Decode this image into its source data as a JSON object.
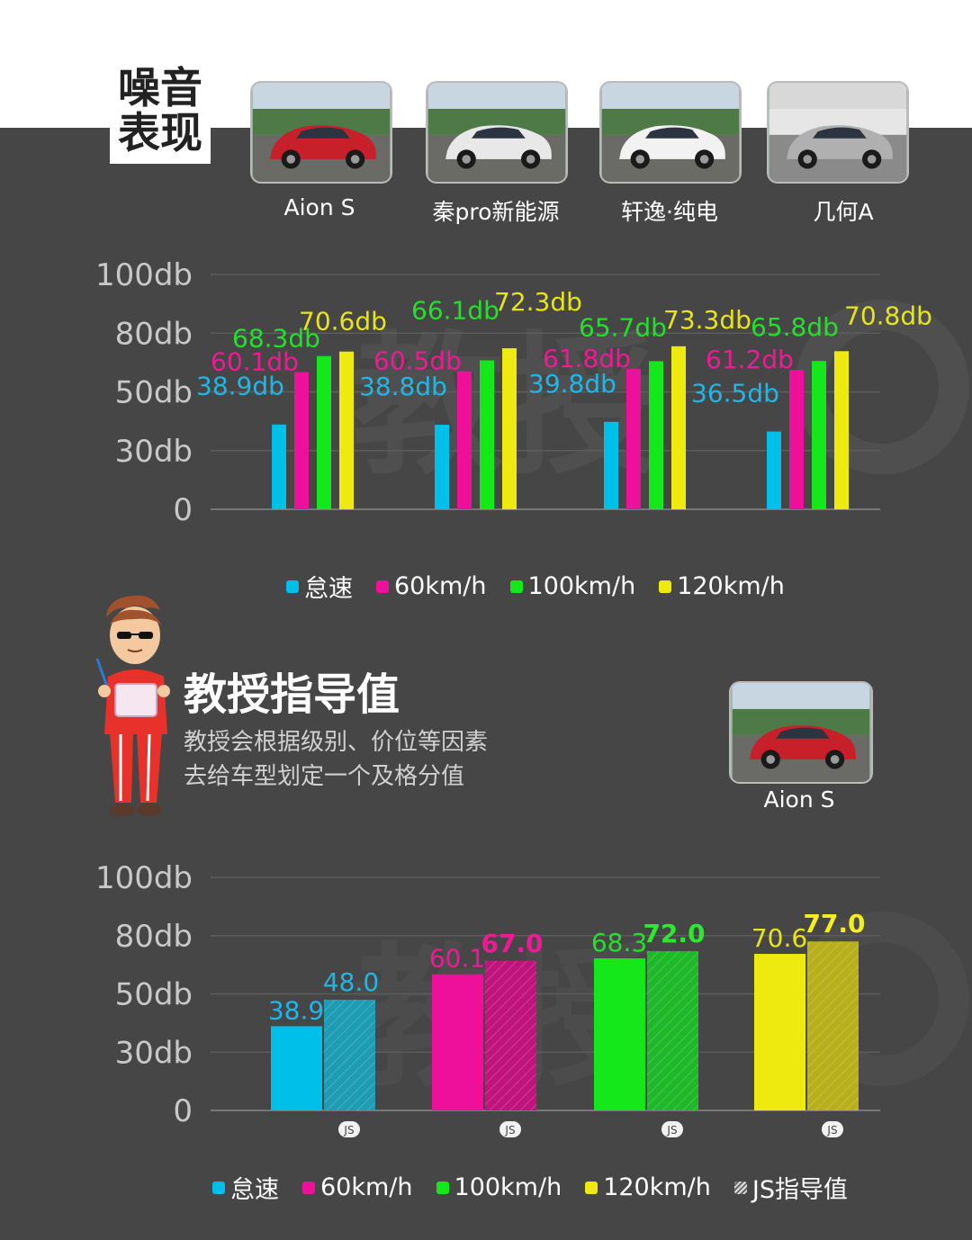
{
  "section_badge": {
    "line1": "噪音",
    "line2": "表现"
  },
  "cars": [
    {
      "name": "Aion S",
      "color": "#c8202a"
    },
    {
      "name": "秦pro新能源",
      "color": "#e8e8e8"
    },
    {
      "name": "轩逸·纯电",
      "color": "#f2f2f2"
    },
    {
      "name": "几何A",
      "color": "#b0b0b0"
    }
  ],
  "colors": {
    "idle": "#00bfe8",
    "kmh60": "#ee109a",
    "kmh100": "#14e81a",
    "kmh120": "#eeea10",
    "label_idle": "#22b6e6",
    "label_60": "#ee1a95",
    "label_100": "#24e02a",
    "label_120": "#e8e41a"
  },
  "chart_data": [
    {
      "type": "bar",
      "categories": [
        "Aion S",
        "秦pro新能源",
        "轩逸·纯电",
        "几何A"
      ],
      "series": [
        {
          "name": "怠速",
          "values": [
            38.9,
            38.8,
            39.8,
            36.5
          ],
          "labels": [
            "38.9db",
            "38.8db",
            "39.8db",
            "36.5db"
          ]
        },
        {
          "name": "60km/h",
          "values": [
            60.1,
            60.5,
            61.8,
            61.2
          ],
          "labels": [
            "60.1db",
            "60.5db",
            "61.8db",
            "61.2db"
          ]
        },
        {
          "name": "100km/h",
          "values": [
            68.3,
            66.1,
            65.7,
            65.8
          ],
          "labels": [
            "68.3db",
            "66.1db",
            "65.7db",
            "65.8db"
          ]
        },
        {
          "name": "120km/h",
          "values": [
            70.6,
            72.3,
            73.3,
            70.8
          ],
          "labels": [
            "70.6db",
            "72.3db",
            "73.3db",
            "70.8db"
          ]
        }
      ],
      "y_ticks": [
        "100db",
        "80db",
        "50db",
        "30db",
        "0"
      ],
      "legend": [
        "怠速",
        "60km/h",
        "100km/h",
        "120km/h"
      ],
      "legend_position": "bottom",
      "grid": true
    },
    {
      "type": "bar",
      "categories": [
        "怠速",
        "60km/h",
        "100km/h",
        "120km/h"
      ],
      "series": [
        {
          "name": "Aion S",
          "values": [
            38.9,
            60.1,
            68.3,
            70.6
          ],
          "labels": [
            "38.9",
            "60.1",
            "68.3",
            "70.6"
          ]
        },
        {
          "name": "JS指导值",
          "values": [
            48.0,
            67.0,
            72.0,
            77.0
          ],
          "labels": [
            "48.0",
            "67.0",
            "72.0",
            "77.0"
          ]
        }
      ],
      "js_badge": "JS",
      "y_ticks": [
        "100db",
        "80db",
        "50db",
        "30db",
        "0"
      ],
      "legend": [
        "怠速",
        "60km/h",
        "100km/h",
        "120km/h",
        "JS指导值"
      ],
      "legend_position": "bottom",
      "grid": true
    }
  ],
  "professor": {
    "title": "教授指导值",
    "desc_line1": "教授会根据级别、价位等因素",
    "desc_line2": "去给车型划定一个及格分值",
    "car_name": "Aion S"
  },
  "watermark_text": "教授"
}
